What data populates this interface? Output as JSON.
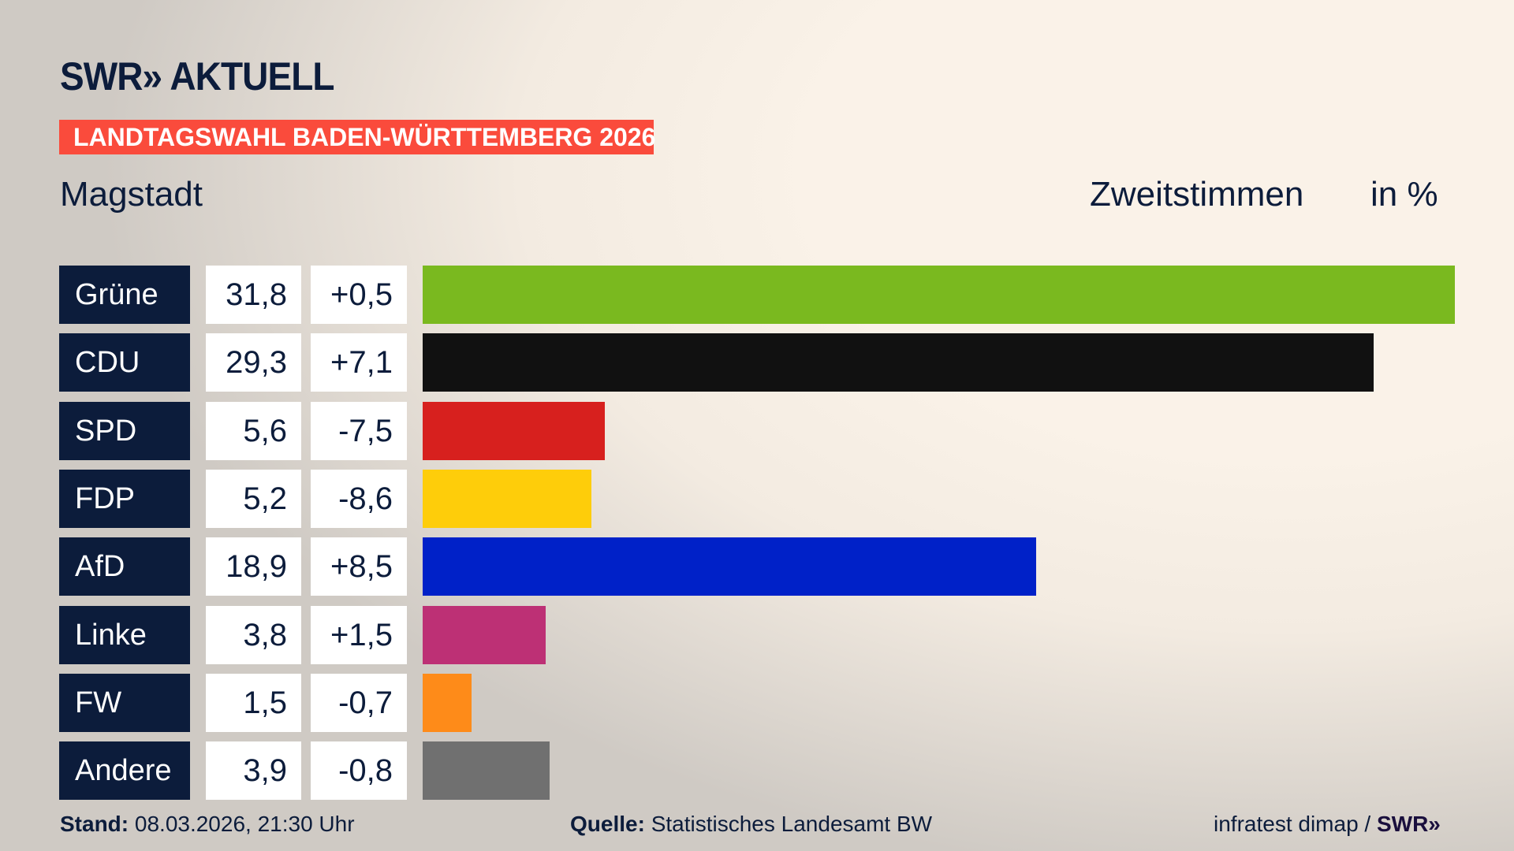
{
  "header": {
    "logo": "SWR» AKTUELL",
    "banner": "LANDTAGSWAHL BADEN-WÜRTTEMBERG 2026",
    "place": "Magstadt",
    "metric": "Zweitstimmen",
    "unit": "in %"
  },
  "colors": {
    "navy": "#0c1c3b",
    "banner": "#fa4b3c"
  },
  "chart_data": {
    "type": "bar",
    "orientation": "horizontal",
    "categories": [
      "Grüne",
      "CDU",
      "SPD",
      "FDP",
      "AfD",
      "Linke",
      "FW",
      "Andere"
    ],
    "values": [
      31.8,
      29.3,
      5.6,
      5.2,
      18.9,
      3.8,
      1.5,
      3.9
    ],
    "value_labels": [
      "31,8",
      "29,3",
      "5,6",
      "5,2",
      "18,9",
      "3,8",
      "1,5",
      "3,9"
    ],
    "diff_labels": [
      "+0,5",
      "+7,1",
      "-7,5",
      "-8,6",
      "+8,5",
      "+1,5",
      "-0,7",
      "-0,8"
    ],
    "diffs": [
      0.5,
      7.1,
      -7.5,
      -8.6,
      8.5,
      1.5,
      -0.7,
      -0.8
    ],
    "colors": [
      "#7ab91f",
      "#111111",
      "#d7201e",
      "#fecd0a",
      "#0021c8",
      "#bd3075",
      "#fe8b19",
      "#707070"
    ],
    "title": "Zweitstimmen",
    "ylabel": "in %",
    "grid": false
  },
  "footer": {
    "stand_label": "Stand:",
    "stand_value": " 08.03.2026, 21:30 Uhr",
    "source_label": "Quelle:",
    "source_value": " Statistisches Landesamt BW",
    "credit": "infratest dimap / ",
    "credit_logo": "SWR»"
  }
}
